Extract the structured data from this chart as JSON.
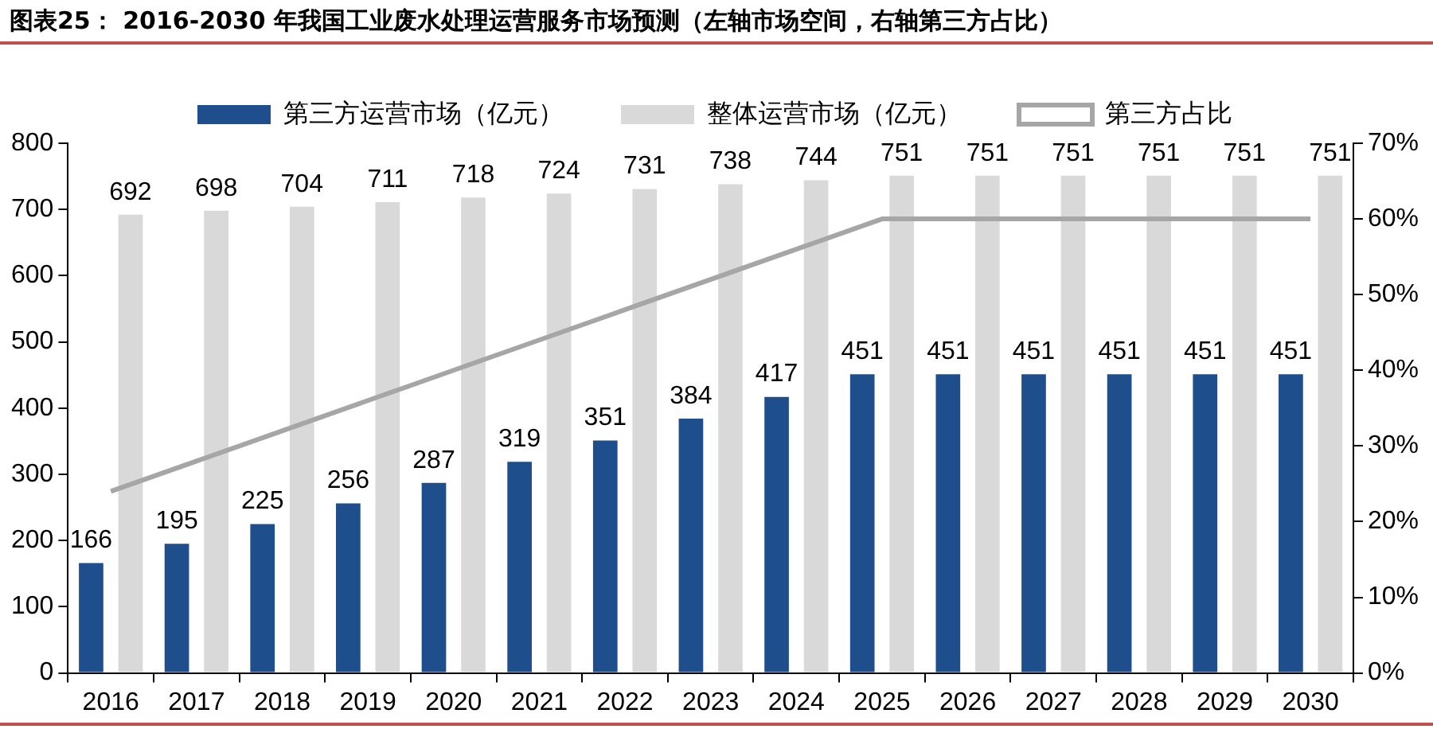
{
  "chart_data": {
    "type": "bar",
    "title": "图表25：  2016-2030 年我国工业废水处理运营服务市场预测（左轴市场空间，右轴第三方占比）",
    "categories": [
      "2016",
      "2017",
      "2018",
      "2019",
      "2020",
      "2021",
      "2022",
      "2023",
      "2024",
      "2025",
      "2026",
      "2027",
      "2028",
      "2029",
      "2030"
    ],
    "series": [
      {
        "name": "第三方运营市场（亿元）",
        "color": "#1f4e8c",
        "values": [
          166,
          195,
          225,
          256,
          287,
          319,
          351,
          384,
          417,
          451,
          451,
          451,
          451,
          451,
          451
        ],
        "value_labels": [
          "166",
          "195",
          "225",
          "256",
          "287",
          "319",
          "351",
          "384",
          "417",
          "451",
          "451",
          "451",
          "451",
          "451",
          "451"
        ]
      },
      {
        "name": "整体运营市场（亿元）",
        "color": "#d9d9d9",
        "values": [
          692,
          698,
          704,
          711,
          718,
          724,
          731,
          738,
          744,
          751,
          751,
          751,
          751,
          751,
          751
        ],
        "value_labels": [
          "692",
          "698",
          "704",
          "711",
          "718",
          "724",
          "731",
          "738",
          "744",
          "751",
          "751",
          "751",
          "751",
          "751",
          "751"
        ]
      },
      {
        "name": "第三方占比",
        "type": "line",
        "axis": "y2",
        "color": "#a6a6a6",
        "marker": "none",
        "values": [
          24,
          28,
          32,
          36,
          40,
          44,
          48,
          52,
          56,
          60,
          60,
          60,
          60,
          60,
          60
        ]
      }
    ],
    "ylim": [
      0,
      800
    ],
    "yticks": [
      0,
      100,
      200,
      300,
      400,
      500,
      600,
      700,
      800
    ],
    "y2lim": [
      0,
      70
    ],
    "y2ticks": [
      {
        "value": 0,
        "label": "0%"
      },
      {
        "value": 10,
        "label": "10%"
      },
      {
        "value": 20,
        "label": "20%"
      },
      {
        "value": 30,
        "label": "30%"
      },
      {
        "value": 40,
        "label": "40%"
      },
      {
        "value": 50,
        "label": "50%"
      },
      {
        "value": 60,
        "label": "60%"
      },
      {
        "value": 70,
        "label": "70%"
      }
    ],
    "grid": false,
    "legend": "top"
  }
}
